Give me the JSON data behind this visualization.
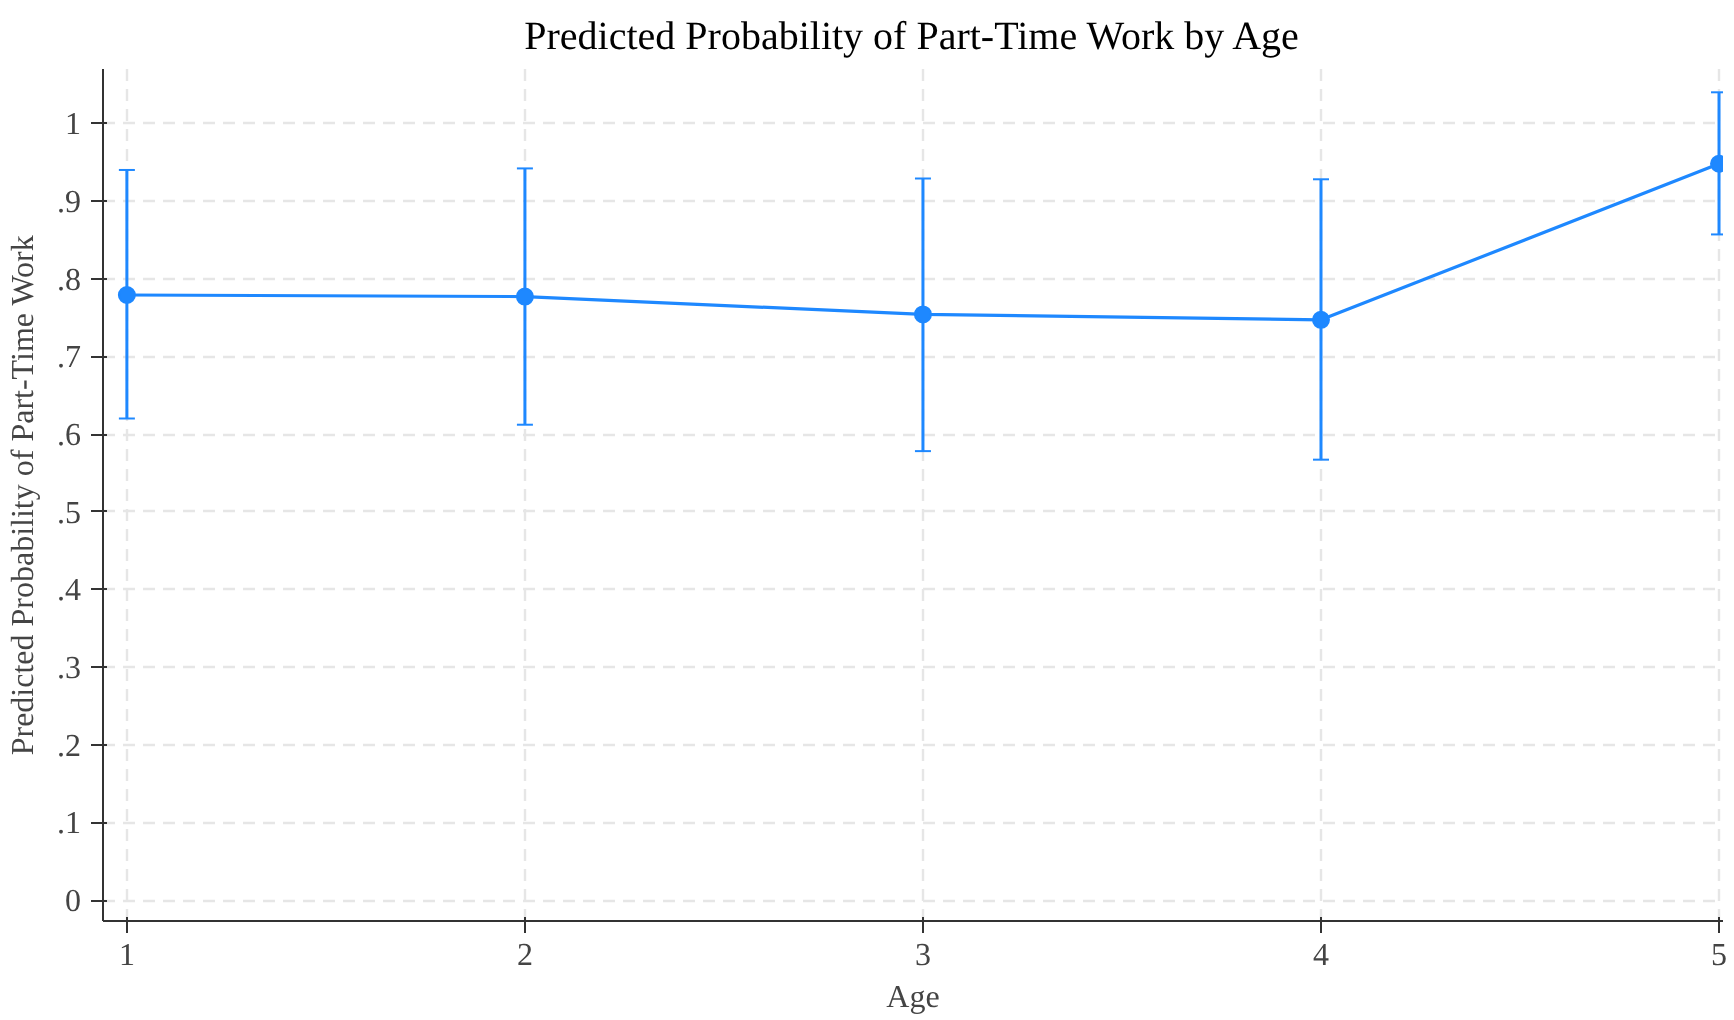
{
  "chart_data": {
    "type": "line",
    "title": "Predicted Probability of Part-Time Work by Age",
    "xlabel": "Age",
    "ylabel": "Predicted Probability of Part-Time Work",
    "x": [
      1,
      2,
      3,
      4,
      5
    ],
    "series": [
      {
        "color": "#1e88ff",
        "values": [
          0.779,
          0.777,
          0.754,
          0.747,
          0.948
        ],
        "errors": [
          [
            0.62,
            0.94
          ],
          [
            0.612,
            0.942
          ],
          [
            0.578,
            0.929
          ],
          [
            0.567,
            0.928
          ],
          [
            0.857,
            1.04
          ]
        ]
      }
    ],
    "xlim": [
      0.94,
      5.01
    ],
    "xticks": [
      1,
      2,
      3,
      4,
      5
    ],
    "ylim": [
      -0.027,
      1.07
    ],
    "yticks": [
      {
        "value": 0,
        "label": "0"
      },
      {
        "value": 0.1,
        "label": ".1"
      },
      {
        "value": 0.2,
        "label": ".2"
      },
      {
        "value": 0.3,
        "label": ".3"
      },
      {
        "value": 0.4,
        "label": ".4"
      },
      {
        "value": 0.5,
        "label": ".5"
      },
      {
        "value": 0.6,
        "label": ".6"
      },
      {
        "value": 0.7,
        "label": ".7"
      },
      {
        "value": 0.8,
        "label": ".8"
      },
      {
        "value": 0.9,
        "label": ".9"
      },
      {
        "value": 1,
        "label": "1"
      }
    ],
    "grid": true,
    "marker": "circle",
    "line_style": "solid"
  }
}
